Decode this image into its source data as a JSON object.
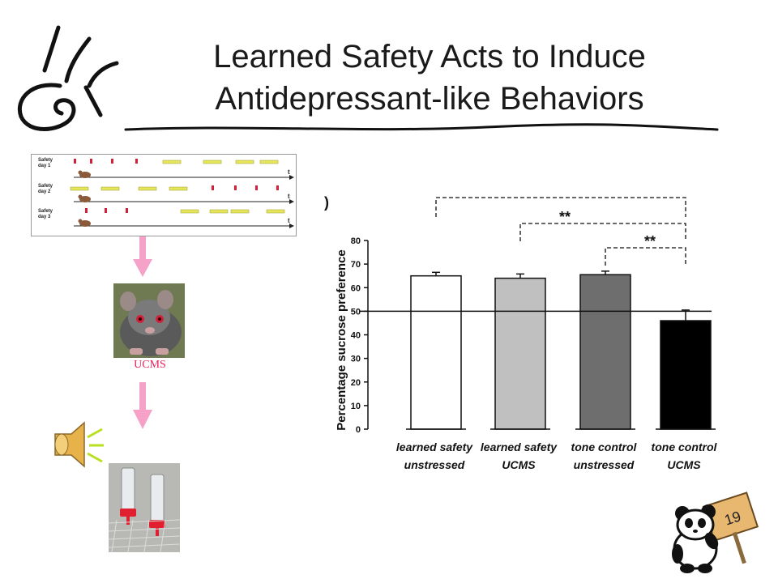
{
  "slide": {
    "title_line1": "Learned Safety Acts to Induce",
    "title_line2": "Antidepressant-like Behaviors",
    "page_number": "19"
  },
  "timeline": {
    "rows": [
      {
        "label_line1": "Safety",
        "label_line2": "day 1",
        "axis_label": "t"
      },
      {
        "label_line1": "Safety",
        "label_line2": "day 2",
        "axis_label": "t"
      },
      {
        "label_line1": "Safety",
        "label_line2": "day 3",
        "axis_label": "t"
      }
    ]
  },
  "ucms_label": "UCMS",
  "panel_letter": ")",
  "colors": {
    "arrow": "#f6a2c8",
    "red_mark": "#d0203a",
    "yellow_bar": "#e6e65a",
    "ucms_text": "#e8205a"
  },
  "chart_data": {
    "type": "bar",
    "ylabel": "Percentage sucrose preference",
    "ylim": [
      0,
      80
    ],
    "yticks": [
      0,
      10,
      20,
      30,
      40,
      50,
      60,
      70,
      80
    ],
    "reference_line": 50,
    "categories": [
      {
        "line1": "learned safety",
        "line2": "unstressed"
      },
      {
        "line1": "learned safety",
        "line2": "UCMS"
      },
      {
        "line1": "tone control",
        "line2": "unstressed"
      },
      {
        "line1": "tone control",
        "line2": "UCMS"
      }
    ],
    "values": [
      65,
      64,
      65.5,
      46
    ],
    "errors": [
      1.5,
      1.8,
      1.5,
      4.5
    ],
    "bar_colors": [
      "#ffffff",
      "#c0c0c0",
      "#6e6e6e",
      "#000000"
    ],
    "significance": [
      {
        "from": 0,
        "to": 3,
        "label": ""
      },
      {
        "from": 1,
        "to": 3,
        "label": "**"
      },
      {
        "from": 2,
        "to": 3,
        "label": "**"
      }
    ]
  }
}
